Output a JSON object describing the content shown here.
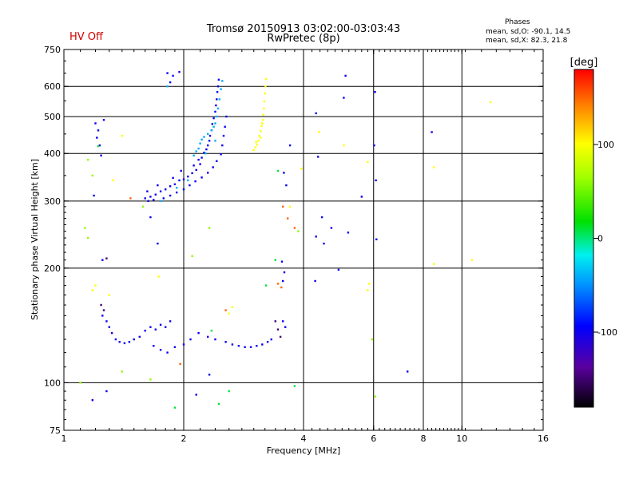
{
  "header": {
    "title_line1": "Tromsø 20150913 03:02:00-03:03:43",
    "title_line2": "RwPretec (8p)",
    "status": "HV Off",
    "status_color": "#d40000",
    "stats_title": "Phases",
    "stats_o": "mean, sd,O: -90.1, 14.5",
    "stats_x": "mean, sd,X:  82.3, 21.8"
  },
  "colorbar": {
    "label": "[deg]",
    "range": [
      -180,
      180
    ],
    "ticks": [
      {
        "value": 100,
        "label": "100"
      },
      {
        "value": 0,
        "label": "0"
      },
      {
        "value": -100,
        "label": "-100"
      }
    ]
  },
  "chart_data": {
    "type": "scatter",
    "xlabel": "Frequency [MHz]",
    "ylabel": "Stationary phase Virtual Height [km]",
    "xscale": "log",
    "yscale": "log",
    "xlim": [
      1,
      16
    ],
    "ylim": [
      75,
      750
    ],
    "xticks": [
      {
        "value": 1,
        "label": "1"
      },
      {
        "value": 2,
        "label": "2"
      },
      {
        "value": 4,
        "label": "4"
      },
      {
        "value": 6,
        "label": "6"
      },
      {
        "value": 8,
        "label": "8"
      },
      {
        "value": 10,
        "label": "10"
      },
      {
        "value": 16,
        "label": "16"
      }
    ],
    "yticks": [
      {
        "value": 75,
        "label": "75"
      },
      {
        "value": 100,
        "label": "100"
      },
      {
        "value": 200,
        "label": "200"
      },
      {
        "value": 300,
        "label": "300"
      },
      {
        "value": 400,
        "label": "400"
      },
      {
        "value": 500,
        "label": "500"
      },
      {
        "value": 600,
        "label": "600"
      },
      {
        "value": 750,
        "label": "750"
      }
    ],
    "grid_x": [
      2,
      4,
      6,
      8,
      10
    ],
    "grid_y": [
      100,
      200,
      300,
      400,
      500,
      600
    ],
    "series": [
      {
        "points": [
          [
            1.6,
            305
          ],
          [
            1.65,
            308
          ],
          [
            1.62,
            318
          ],
          [
            1.7,
            312
          ],
          [
            1.75,
            318
          ],
          [
            1.8,
            322
          ],
          [
            1.72,
            330
          ],
          [
            1.85,
            328
          ],
          [
            1.9,
            332
          ],
          [
            1.95,
            340
          ],
          [
            2.0,
            342
          ],
          [
            1.88,
            345
          ],
          [
            2.05,
            348
          ],
          [
            2.1,
            355
          ],
          [
            1.97,
            360
          ],
          [
            2.15,
            362
          ],
          [
            2.12,
            372
          ],
          [
            2.2,
            375
          ],
          [
            2.18,
            385
          ],
          [
            2.22,
            390
          ],
          [
            2.25,
            402
          ],
          [
            2.28,
            410
          ],
          [
            2.3,
            420
          ],
          [
            2.32,
            432
          ],
          [
            2.33,
            445
          ],
          [
            2.35,
            460
          ],
          [
            2.36,
            478
          ],
          [
            2.38,
            495
          ],
          [
            2.4,
            515
          ],
          [
            2.41,
            535
          ],
          [
            2.42,
            555
          ],
          [
            2.43,
            580
          ],
          [
            2.44,
            600
          ],
          [
            2.45,
            625
          ],
          [
            1.63,
            300
          ],
          [
            1.68,
            302
          ],
          [
            1.78,
            305
          ],
          [
            1.85,
            310
          ],
          [
            1.92,
            316
          ],
          [
            2.0,
            322
          ],
          [
            2.07,
            330
          ],
          [
            2.14,
            338
          ],
          [
            2.22,
            346
          ],
          [
            2.3,
            356
          ],
          [
            2.37,
            368
          ],
          [
            2.42,
            382
          ],
          [
            2.48,
            398
          ],
          [
            2.5,
            420
          ],
          [
            2.52,
            445
          ],
          [
            2.54,
            470
          ],
          [
            2.56,
            500
          ],
          [
            1.82,
            650
          ],
          [
            1.88,
            640
          ],
          [
            1.95,
            655
          ],
          [
            1.85,
            615
          ],
          [
            1.2,
            480
          ],
          [
            1.22,
            460
          ],
          [
            1.21,
            440
          ],
          [
            1.23,
            420
          ],
          [
            1.24,
            395
          ],
          [
            1.26,
            490
          ],
          [
            1.19,
            310
          ],
          [
            1.25,
            210
          ],
          [
            1.25,
            150
          ],
          [
            1.28,
            145
          ],
          [
            1.3,
            140
          ],
          [
            1.32,
            135
          ],
          [
            1.35,
            130
          ],
          [
            1.38,
            128
          ],
          [
            1.42,
            127
          ],
          [
            1.46,
            128
          ],
          [
            1.5,
            130
          ],
          [
            1.55,
            132
          ],
          [
            1.6,
            137
          ],
          [
            1.65,
            140
          ],
          [
            1.7,
            138
          ],
          [
            1.75,
            142
          ],
          [
            1.8,
            140
          ],
          [
            1.85,
            145
          ],
          [
            1.68,
            125
          ],
          [
            1.75,
            122
          ],
          [
            1.82,
            120
          ],
          [
            1.9,
            124
          ],
          [
            2.0,
            126
          ],
          [
            2.08,
            130
          ],
          [
            2.18,
            135
          ],
          [
            2.3,
            132
          ],
          [
            2.4,
            130
          ],
          [
            2.55,
            128
          ],
          [
            2.65,
            126
          ],
          [
            2.75,
            125
          ],
          [
            2.85,
            124
          ],
          [
            2.95,
            124
          ],
          [
            3.05,
            125
          ],
          [
            3.15,
            126
          ],
          [
            3.25,
            128
          ],
          [
            3.32,
            130
          ],
          [
            2.32,
            105
          ],
          [
            2.15,
            93
          ],
          [
            1.18,
            90
          ],
          [
            1.28,
            95
          ],
          [
            1.65,
            272
          ],
          [
            1.72,
            232
          ],
          [
            3.55,
            145
          ],
          [
            3.6,
            140
          ],
          [
            3.55,
            185
          ],
          [
            3.58,
            195
          ],
          [
            3.53,
            208
          ],
          [
            3.57,
            356
          ],
          [
            3.62,
            330
          ],
          [
            3.7,
            420
          ],
          [
            4.3,
            510
          ],
          [
            4.35,
            392
          ],
          [
            4.3,
            242
          ],
          [
            4.45,
            272
          ],
          [
            4.5,
            232
          ],
          [
            4.7,
            255
          ],
          [
            4.28,
            185
          ],
          [
            4.9,
            198
          ],
          [
            5.05,
            560
          ],
          [
            5.1,
            640
          ],
          [
            5.18,
            248
          ],
          [
            5.6,
            308
          ],
          [
            6.05,
            580
          ],
          [
            6.08,
            340
          ],
          [
            6.02,
            420
          ],
          [
            6.1,
            238
          ],
          [
            7.3,
            107
          ],
          [
            8.4,
            455
          ]
        ],
        "phase": -100
      },
      {
        "points": [
          [
            2.12,
            395
          ],
          [
            2.15,
            405
          ],
          [
            2.18,
            412
          ],
          [
            2.2,
            425
          ],
          [
            2.22,
            435
          ],
          [
            2.25,
            442
          ],
          [
            2.3,
            450
          ],
          [
            2.35,
            460
          ],
          [
            2.38,
            470
          ],
          [
            2.4,
            480
          ],
          [
            2.42,
            500
          ],
          [
            2.44,
            525
          ],
          [
            2.46,
            555
          ],
          [
            2.48,
            590
          ],
          [
            2.5,
            620
          ],
          [
            1.82,
            600
          ],
          [
            1.75,
            300
          ],
          [
            1.92,
            325
          ],
          [
            2.05,
            340
          ],
          [
            2.27,
            400
          ],
          [
            2.4,
            432
          ]
        ],
        "phase": -40
      },
      {
        "points": [
          [
            3.0,
            408
          ],
          [
            3.03,
            415
          ],
          [
            3.06,
            422
          ],
          [
            3.08,
            432
          ],
          [
            3.1,
            445
          ],
          [
            3.12,
            458
          ],
          [
            3.14,
            472
          ],
          [
            3.16,
            490
          ],
          [
            3.17,
            505
          ],
          [
            3.18,
            525
          ],
          [
            3.19,
            548
          ],
          [
            3.2,
            575
          ],
          [
            3.21,
            600
          ],
          [
            3.22,
            628
          ],
          [
            3.04,
            428
          ],
          [
            3.12,
            440
          ],
          [
            3.15,
            480
          ],
          [
            1.4,
            445
          ],
          [
            1.33,
            340
          ],
          [
            1.73,
            190
          ],
          [
            1.2,
            180
          ],
          [
            1.18,
            175
          ],
          [
            1.3,
            170
          ],
          [
            5.05,
            420
          ],
          [
            5.8,
            380
          ],
          [
            5.85,
            182
          ],
          [
            5.8,
            175
          ],
          [
            3.7,
            290
          ],
          [
            3.95,
            365
          ],
          [
            4.38,
            455
          ],
          [
            11.8,
            545
          ],
          [
            8.5,
            368
          ],
          [
            8.5,
            205
          ],
          [
            10.6,
            210
          ],
          [
            2.6,
            152
          ],
          [
            2.65,
            158
          ]
        ],
        "phase": 100
      },
      {
        "points": [
          [
            1.15,
            385
          ],
          [
            1.18,
            350
          ],
          [
            1.13,
            255
          ],
          [
            1.15,
            240
          ],
          [
            1.65,
            102
          ],
          [
            1.1,
            100
          ],
          [
            1.58,
            290
          ],
          [
            2.1,
            215
          ],
          [
            2.32,
            255
          ],
          [
            3.88,
            250
          ],
          [
            6.06,
            92
          ],
          [
            5.95,
            130
          ],
          [
            1.4,
            107
          ]
        ],
        "phase": 60
      },
      {
        "points": [
          [
            1.9,
            86
          ],
          [
            2.35,
            137
          ],
          [
            2.45,
            88
          ],
          [
            2.6,
            95
          ],
          [
            3.22,
            180
          ],
          [
            3.4,
            210
          ],
          [
            3.8,
            98
          ],
          [
            3.45,
            360
          ],
          [
            1.22,
            418
          ]
        ],
        "phase": 10
      },
      {
        "points": [
          [
            3.55,
            290
          ],
          [
            3.65,
            270
          ],
          [
            3.8,
            255
          ],
          [
            3.52,
            178
          ],
          [
            3.45,
            182
          ],
          [
            2.55,
            155
          ],
          [
            1.47,
            305
          ],
          [
            1.96,
            112
          ]
        ],
        "phase": 150
      },
      {
        "points": [
          [
            3.4,
            145
          ],
          [
            3.45,
            138
          ],
          [
            3.5,
            132
          ],
          [
            1.28,
            212
          ],
          [
            1.26,
            155
          ],
          [
            1.24,
            160
          ]
        ],
        "phase": -150
      }
    ]
  }
}
